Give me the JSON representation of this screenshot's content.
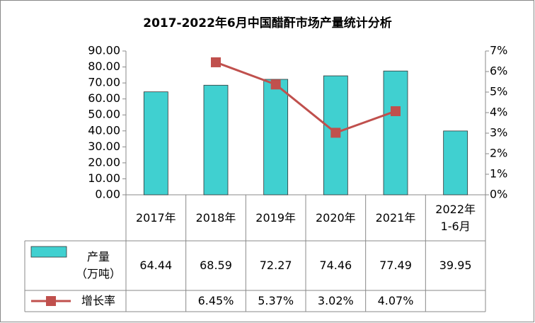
{
  "chart_data": {
    "type": "bar",
    "title": "2017-2022年6月中国醋酐市场产量统计分析",
    "categories": [
      "2017年",
      "2018年",
      "2019年",
      "2020年",
      "2021年",
      "2022年\n1-6月"
    ],
    "series": [
      {
        "name": "产量\n（万吨）",
        "type": "bar",
        "color": "#40D0D0",
        "values": [
          64.44,
          68.59,
          72.27,
          74.46,
          77.49,
          39.95
        ]
      },
      {
        "name": "增长率",
        "type": "line",
        "axis": "y2",
        "color": "#C0504D",
        "values": [
          null,
          6.45,
          5.37,
          3.02,
          4.07,
          null
        ],
        "value_labels": [
          null,
          "6.45%",
          "5.37%",
          "3.02%",
          "4.07%",
          null
        ]
      }
    ],
    "ylim": [
      0,
      90
    ],
    "yticks": [
      {
        "value": 0,
        "label": "0.00"
      },
      {
        "value": 10,
        "label": "10.00"
      },
      {
        "value": 20,
        "label": "20.00"
      },
      {
        "value": 30,
        "label": "30.00"
      },
      {
        "value": 40,
        "label": "40.00"
      },
      {
        "value": 50,
        "label": "50.00"
      },
      {
        "value": 60,
        "label": "60.00"
      },
      {
        "value": 70,
        "label": "70.00"
      },
      {
        "value": 80,
        "label": "80.00"
      },
      {
        "value": 90,
        "label": "90.00"
      }
    ],
    "y2lim": [
      0,
      7
    ],
    "y2ticks": [
      {
        "value": 0,
        "label": "0%"
      },
      {
        "value": 1,
        "label": "1%"
      },
      {
        "value": 2,
        "label": "2%"
      },
      {
        "value": 3,
        "label": "3%"
      },
      {
        "value": 4,
        "label": "4%"
      },
      {
        "value": 5,
        "label": "5%"
      },
      {
        "value": 6,
        "label": "6%"
      },
      {
        "value": 7,
        "label": "7%"
      }
    ],
    "grid": false
  }
}
